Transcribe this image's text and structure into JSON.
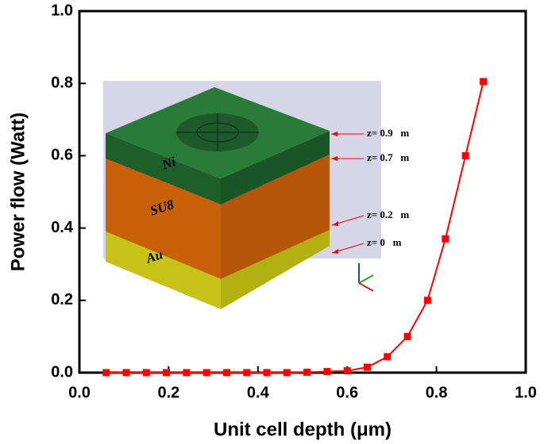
{
  "chart_data": {
    "type": "line",
    "x_label": "Unit cell depth (μm)",
    "y_label": "Power flow (Watt)",
    "xlim": [
      0,
      1
    ],
    "ylim": [
      0,
      1
    ],
    "xticks": [
      {
        "value": 0,
        "label": "0.0"
      },
      0.2,
      0.4,
      0.6,
      0.8,
      {
        "value": 1,
        "label": "1.0"
      }
    ],
    "yticks": [
      {
        "value": 0,
        "label": "0.0"
      },
      0.2,
      0.4,
      0.6,
      0.8,
      {
        "value": 1,
        "label": "1.0"
      }
    ],
    "x": [
      0.06,
      0.105,
      0.15,
      0.195,
      0.24,
      0.285,
      0.33,
      0.375,
      0.42,
      0.465,
      0.51,
      0.555,
      0.6,
      0.645,
      0.69,
      0.735,
      0.78,
      0.82,
      0.865,
      0.905
    ],
    "series": [
      {
        "color": "#ff0000",
        "values": [
          0,
          0,
          0,
          0,
          0,
          0,
          0,
          0,
          0,
          0,
          0.001,
          0.003,
          0.005,
          0.015,
          0.044,
          0.1,
          0.2,
          0.37,
          0.6,
          0.805
        ]
      }
    ],
    "inset_labels": [
      "Ni",
      "SU8",
      "Au"
    ],
    "annotations": [
      "z= 0.9   m",
      "z= 0.7   m",
      "z= 0.2   m",
      "z= 0   m"
    ]
  }
}
